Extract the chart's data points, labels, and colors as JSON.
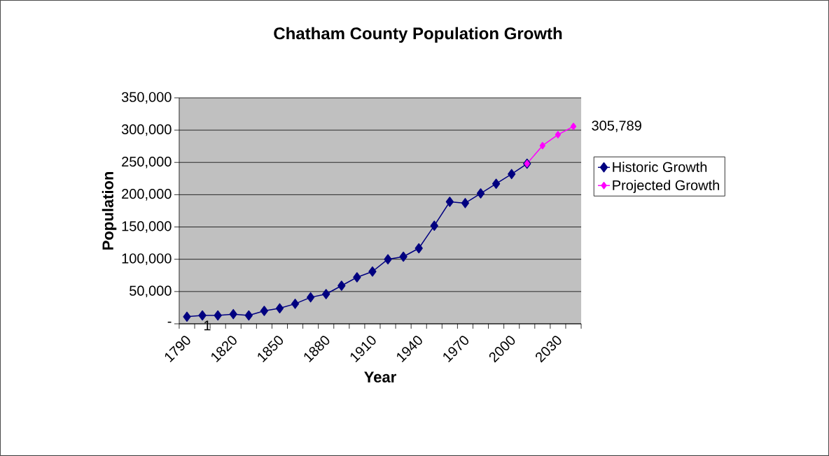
{
  "chart_data": {
    "type": "line",
    "title": "Chatham County Population Growth",
    "xlabel": "Year",
    "ylabel": "Population",
    "categories": [
      "1790",
      null,
      null,
      "1820",
      null,
      null,
      "1850",
      null,
      null,
      "1880",
      null,
      null,
      "1910",
      null,
      null,
      "1940",
      null,
      null,
      "1970",
      null,
      null,
      "2000",
      null,
      null,
      "2030",
      null
    ],
    "series": [
      {
        "name": "Historic Growth",
        "color": "#000080",
        "values": [
          11000,
          13000,
          13000,
          15000,
          13000,
          20000,
          24000,
          31000,
          41000,
          46000,
          59000,
          72000,
          81000,
          100000,
          104000,
          117000,
          152000,
          189000,
          187000,
          202000,
          217000,
          232000,
          248000,
          null,
          null,
          null
        ]
      },
      {
        "name": "Projected Growth",
        "color": "#ff00ff",
        "values": [
          null,
          null,
          null,
          null,
          null,
          null,
          null,
          null,
          null,
          null,
          null,
          null,
          null,
          null,
          null,
          null,
          null,
          null,
          null,
          null,
          null,
          null,
          248000,
          276000,
          293000,
          305789
        ],
        "value_labels": [
          null,
          null,
          null,
          null,
          null,
          null,
          null,
          null,
          null,
          null,
          null,
          null,
          null,
          null,
          null,
          null,
          null,
          null,
          null,
          null,
          null,
          null,
          null,
          null,
          null,
          "305,789"
        ]
      }
    ],
    "ylim": [
      0,
      350000
    ],
    "yticks": [
      {
        "value": 0,
        "label": "-"
      },
      {
        "value": 50000,
        "label": "50,000"
      },
      {
        "value": 100000,
        "label": "100,000"
      },
      {
        "value": 150000,
        "label": "150,000"
      },
      {
        "value": 200000,
        "label": "200,000"
      },
      {
        "value": 250000,
        "label": "250,000"
      },
      {
        "value": 300000,
        "label": "300,000"
      },
      {
        "value": 350000,
        "label": "350,000"
      }
    ],
    "grid": "y",
    "legend": "right",
    "marker": "diamond",
    "line_style": "solid",
    "annotations": [
      "1"
    ]
  }
}
